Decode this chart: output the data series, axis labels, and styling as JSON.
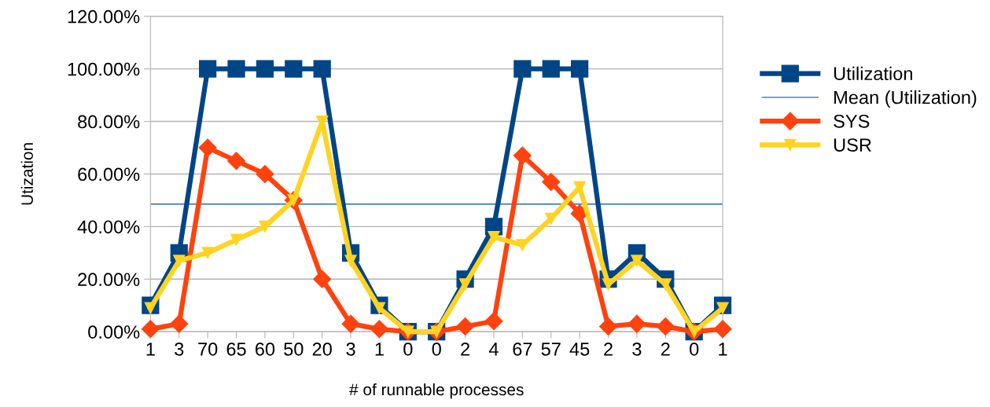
{
  "chart_data": {
    "type": "line",
    "xlabel": "# of runnable processes",
    "ylabel": "Utization",
    "categories": [
      "1",
      "3",
      "70",
      "65",
      "60",
      "50",
      "20",
      "3",
      "1",
      "0",
      "0",
      "2",
      "4",
      "67",
      "57",
      "45",
      "2",
      "3",
      "2",
      "0",
      "1"
    ],
    "series": [
      {
        "name": "Utilization",
        "color": "#004586",
        "marker": "square",
        "values": [
          10,
          30,
          100,
          100,
          100,
          100,
          100,
          30,
          10,
          0,
          0,
          20,
          40,
          100,
          100,
          100,
          20,
          30,
          20,
          0,
          10
        ]
      },
      {
        "name": "SYS",
        "color": "#ff420e",
        "marker": "diamond",
        "values": [
          1,
          3,
          70,
          65,
          60,
          50,
          20,
          3,
          1,
          0,
          0,
          2,
          4,
          67,
          57,
          45,
          2,
          3,
          2,
          0,
          1
        ]
      },
      {
        "name": "USR",
        "color": "#ffd320",
        "marker": "triangle",
        "values": [
          9,
          27,
          30,
          35,
          40,
          50,
          80,
          27,
          9,
          0,
          0,
          18,
          36,
          33,
          43,
          55,
          18,
          27,
          18,
          0,
          9
        ]
      }
    ],
    "ref_lines": [
      {
        "axis": "y",
        "value": 48.57,
        "label": "Mean (Utilization)",
        "color": "#2c6aa7",
        "line_style": "solid"
      }
    ],
    "ylim": [
      0,
      120
    ],
    "yticks": [
      {
        "value": 0,
        "label": "0.00%"
      },
      {
        "value": 20,
        "label": "20.00%"
      },
      {
        "value": 40,
        "label": "40.00%"
      },
      {
        "value": 60,
        "label": "60.00%"
      },
      {
        "value": 80,
        "label": "80.00%"
      },
      {
        "value": 100,
        "label": "100.00%"
      },
      {
        "value": 120,
        "label": "120.00%"
      }
    ],
    "grid": "y",
    "legend": "right",
    "line_style": "solid"
  }
}
